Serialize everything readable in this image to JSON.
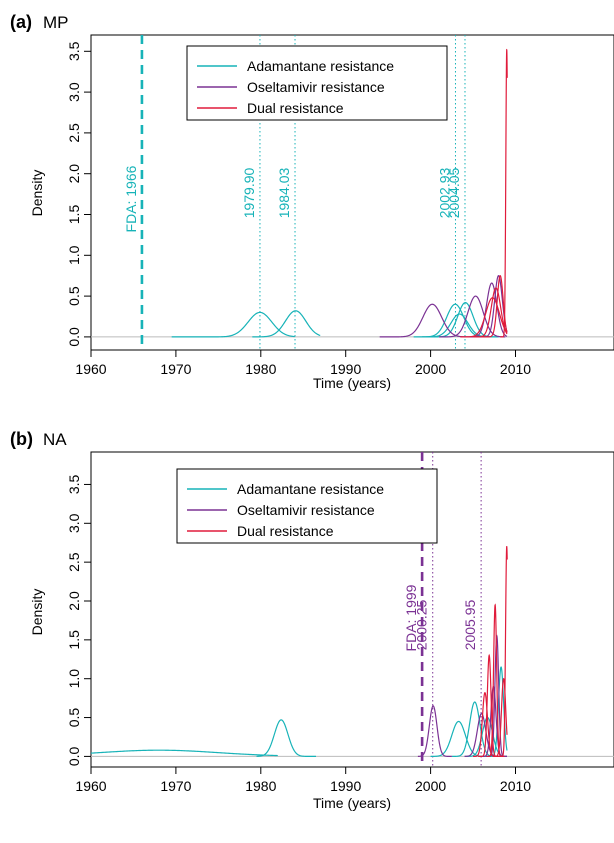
{
  "chart_data": [
    {
      "panel": "(a)",
      "title": "MP",
      "type": "line",
      "xlabel": "Time (years)",
      "ylabel": "Density",
      "xlim": [
        1960,
        2015
      ],
      "ylim": [
        -0.15,
        3.6
      ],
      "x_ticks": [
        "1960",
        "1970",
        "1980",
        "1990",
        "2000",
        "2010"
      ],
      "y_ticks": [
        "0.0",
        "0.5",
        "1.0",
        "1.5",
        "2.0",
        "2.5",
        "3.0",
        "3.5"
      ],
      "legend": {
        "position": "top-center",
        "entries": [
          {
            "name": "Adamantane resistance",
            "color": "#17b3b8"
          },
          {
            "name": "Oseltamivir resistance",
            "color": "#7b3294"
          },
          {
            "name": "Dual resistance",
            "color": "#e01b3b"
          }
        ]
      },
      "fda_line": {
        "label": "FDA: 1966",
        "x": 1966,
        "color": "#17b3b8"
      },
      "reference_lines": [
        {
          "label": "1979.90",
          "x": 1979.9,
          "color": "#17b3b8"
        },
        {
          "label": "1984.03",
          "x": 1984.03,
          "color": "#17b3b8"
        },
        {
          "label": "2002.93",
          "x": 2002.93,
          "color": "#17b3b8"
        },
        {
          "label": "2004.05",
          "x": 2004.05,
          "color": "#17b3b8"
        }
      ],
      "curves": [
        {
          "series": "Adamantane resistance",
          "peak_x": 1979.9,
          "peak_y": 0.3,
          "sd": 1.4,
          "x_from": 1969.5,
          "x_to": 1984
        },
        {
          "series": "Adamantane resistance",
          "peak_x": 1984.1,
          "peak_y": 0.32,
          "sd": 1.2,
          "x_from": 1979,
          "x_to": 1987
        },
        {
          "series": "Adamantane resistance",
          "peak_x": 2002.9,
          "peak_y": 0.4,
          "sd": 1.0,
          "x_from": 1998,
          "x_to": 2007
        },
        {
          "series": "Adamantane resistance",
          "peak_x": 2004.1,
          "peak_y": 0.42,
          "sd": 0.9,
          "x_from": 2000,
          "x_to": 2008
        },
        {
          "series": "Adamantane resistance",
          "peak_x": 2003.4,
          "peak_y": 0.28,
          "sd": 1.0,
          "x_from": 1999,
          "x_to": 2008
        },
        {
          "series": "Oseltamivir resistance",
          "peak_x": 2000.2,
          "peak_y": 0.4,
          "sd": 1.1,
          "x_from": 1994,
          "x_to": 2004
        },
        {
          "series": "Oseltamivir resistance",
          "peak_x": 2005.3,
          "peak_y": 0.5,
          "sd": 0.9,
          "x_from": 2001,
          "x_to": 2008.8
        },
        {
          "series": "Oseltamivir resistance",
          "peak_x": 2007.2,
          "peak_y": 0.66,
          "sd": 0.6,
          "x_from": 2004,
          "x_to": 2009
        },
        {
          "series": "Oseltamivir resistance",
          "peak_x": 2008.0,
          "peak_y": 0.75,
          "sd": 0.45,
          "x_from": 2005.5,
          "x_to": 2009
        },
        {
          "series": "Dual resistance",
          "peak_x": 2007.3,
          "peak_y": 0.48,
          "sd": 0.8,
          "x_from": 2003.5,
          "x_to": 2009
        },
        {
          "series": "Dual resistance",
          "peak_x": 2007.7,
          "peak_y": 0.6,
          "sd": 0.55,
          "x_from": 2005,
          "x_to": 2009
        },
        {
          "series": "Dual resistance",
          "peak_x": 2008.2,
          "peak_y": 0.75,
          "sd": 0.35,
          "x_from": 2006,
          "x_to": 2009
        },
        {
          "series": "Dual resistance",
          "peak_x": 2008.97,
          "peak_y": 3.52,
          "sd": 0.11,
          "x_from": 2008.2,
          "x_to": 2009.02
        }
      ]
    },
    {
      "panel": "(b)",
      "title": "NA",
      "type": "line",
      "xlabel": "Time (years)",
      "ylabel": "Density",
      "xlim": [
        1960,
        2015
      ],
      "ylim": [
        -0.15,
        3.6
      ],
      "x_ticks": [
        "1960",
        "1970",
        "1980",
        "1990",
        "2000",
        "2010"
      ],
      "y_ticks": [
        "0.0",
        "0.5",
        "1.0",
        "1.5",
        "2.0",
        "2.5",
        "3.0",
        "3.5"
      ],
      "legend": {
        "position": "top-center",
        "entries": [
          {
            "name": "Adamantane resistance",
            "color": "#17b3b8"
          },
          {
            "name": "Oseltamivir resistance",
            "color": "#7b3294"
          },
          {
            "name": "Dual resistance",
            "color": "#e01b3b"
          }
        ]
      },
      "fda_line": {
        "label": "FDA: 1999",
        "x": 1999,
        "color": "#7b3294"
      },
      "reference_lines": [
        {
          "label": "2000.25",
          "x": 2000.25,
          "color": "#7b3294"
        },
        {
          "label": "2005.95",
          "x": 2005.95,
          "color": "#7b3294"
        }
      ],
      "curves": [
        {
          "series": "Adamantane resistance",
          "peak_x": 1968,
          "peak_y": 0.08,
          "sd": 7.0,
          "x_from": 1960,
          "x_to": 1982
        },
        {
          "series": "Adamantane resistance",
          "peak_x": 1982.4,
          "peak_y": 0.47,
          "sd": 0.8,
          "x_from": 1979.5,
          "x_to": 1986.5
        },
        {
          "series": "Adamantane resistance",
          "peak_x": 2003.3,
          "peak_y": 0.45,
          "sd": 0.8,
          "x_from": 2000,
          "x_to": 2007
        },
        {
          "series": "Adamantane resistance",
          "peak_x": 2005.2,
          "peak_y": 0.7,
          "sd": 0.6,
          "x_from": 2002.5,
          "x_to": 2008
        },
        {
          "series": "Adamantane resistance",
          "peak_x": 2006.7,
          "peak_y": 0.5,
          "sd": 0.6,
          "x_from": 2004,
          "x_to": 2009
        },
        {
          "series": "Adamantane resistance",
          "peak_x": 2008.3,
          "peak_y": 1.15,
          "sd": 0.3,
          "x_from": 2006.5,
          "x_to": 2009
        },
        {
          "series": "Oseltamivir resistance",
          "peak_x": 2000.3,
          "peak_y": 0.65,
          "sd": 0.45,
          "x_from": 1998.5,
          "x_to": 2002.5
        },
        {
          "series": "Oseltamivir resistance",
          "peak_x": 2006.0,
          "peak_y": 0.55,
          "sd": 0.5,
          "x_from": 2004,
          "x_to": 2008.5
        },
        {
          "series": "Oseltamivir resistance",
          "peak_x": 2007.8,
          "peak_y": 1.55,
          "sd": 0.22,
          "x_from": 2006.5,
          "x_to": 2009
        },
        {
          "series": "Oseltamivir resistance",
          "peak_x": 2007.4,
          "peak_y": 0.9,
          "sd": 0.3,
          "x_from": 2006,
          "x_to": 2009
        },
        {
          "series": "Dual resistance",
          "peak_x": 2006.4,
          "peak_y": 0.82,
          "sd": 0.3,
          "x_from": 2005,
          "x_to": 2008
        },
        {
          "series": "Dual resistance",
          "peak_x": 2006.9,
          "peak_y": 1.3,
          "sd": 0.22,
          "x_from": 2005.6,
          "x_to": 2008.4
        },
        {
          "series": "Dual resistance",
          "peak_x": 2007.6,
          "peak_y": 1.95,
          "sd": 0.18,
          "x_from": 2006.6,
          "x_to": 2008.7
        },
        {
          "series": "Dual resistance",
          "peak_x": 2008.6,
          "peak_y": 1.0,
          "sd": 0.25,
          "x_from": 2007.3,
          "x_to": 2009
        },
        {
          "series": "Dual resistance",
          "peak_x": 2008.97,
          "peak_y": 2.7,
          "sd": 0.14,
          "x_from": 2008.2,
          "x_to": 2009.02
        }
      ]
    }
  ]
}
